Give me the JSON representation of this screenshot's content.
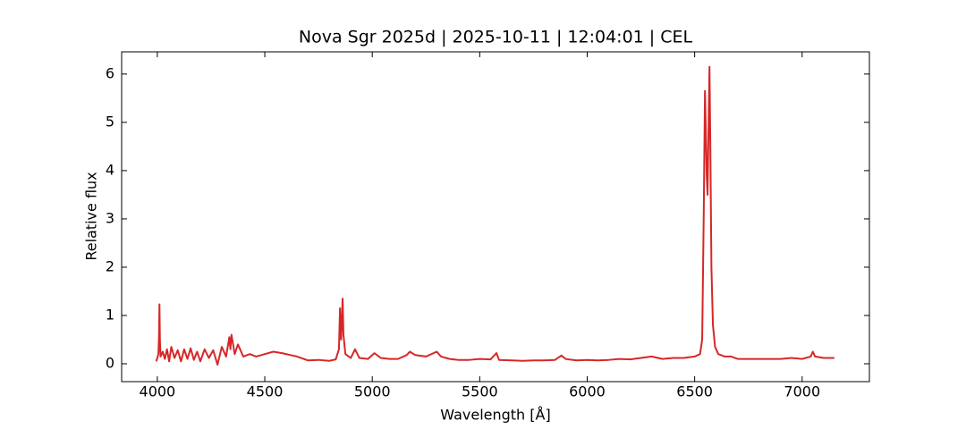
{
  "chart_data": {
    "type": "line",
    "title": "Nova Sgr 2025d | 2025-10-11 | 12:04:01 | CEL",
    "x_label": "Wavelength [Å]",
    "y_label": "Relative flux",
    "color": "#d62728",
    "xlim": [
      3834,
      7313
    ],
    "ylim": [
      -0.37,
      6.46
    ],
    "xticks": [
      4000,
      4500,
      5000,
      5500,
      6000,
      6500,
      7000
    ],
    "yticks": [
      0,
      1,
      2,
      3,
      4,
      5,
      6
    ],
    "x": [
      3995,
      4000,
      4005,
      4008,
      4010,
      4012,
      4015,
      4025,
      4035,
      4045,
      4055,
      4065,
      4080,
      4095,
      4110,
      4125,
      4140,
      4155,
      4170,
      4185,
      4200,
      4220,
      4240,
      4260,
      4280,
      4300,
      4320,
      4335,
      4340,
      4345,
      4360,
      4375,
      4400,
      4430,
      4460,
      4500,
      4540,
      4580,
      4620,
      4650,
      4700,
      4750,
      4800,
      4830,
      4845,
      4850,
      4855,
      4858,
      4862,
      4866,
      4875,
      4900,
      4920,
      4940,
      4980,
      5010,
      5040,
      5080,
      5120,
      5160,
      5175,
      5200,
      5250,
      5300,
      5320,
      5360,
      5400,
      5450,
      5500,
      5550,
      5578,
      5590,
      5650,
      5700,
      5750,
      5800,
      5850,
      5880,
      5900,
      5950,
      6000,
      6050,
      6100,
      6150,
      6200,
      6250,
      6300,
      6350,
      6400,
      6450,
      6500,
      6525,
      6535,
      6542,
      6548,
      6552,
      6556,
      6560,
      6565,
      6569,
      6573,
      6578,
      6585,
      6595,
      6610,
      6640,
      6670,
      6700,
      6750,
      6800,
      6850,
      6900,
      6950,
      7000,
      7040,
      7050,
      7060,
      7100,
      7150
    ],
    "values": [
      0.05,
      0.12,
      0.2,
      0.6,
      1.23,
      0.5,
      0.15,
      0.25,
      0.1,
      0.3,
      0.05,
      0.35,
      0.12,
      0.28,
      0.05,
      0.3,
      0.1,
      0.32,
      0.08,
      0.25,
      0.05,
      0.3,
      0.12,
      0.28,
      -0.02,
      0.35,
      0.15,
      0.55,
      0.3,
      0.6,
      0.2,
      0.4,
      0.15,
      0.2,
      0.15,
      0.2,
      0.25,
      0.22,
      0.18,
      0.15,
      0.07,
      0.08,
      0.06,
      0.09,
      0.3,
      1.15,
      0.5,
      0.8,
      1.35,
      0.6,
      0.2,
      0.12,
      0.3,
      0.12,
      0.1,
      0.22,
      0.12,
      0.1,
      0.1,
      0.18,
      0.25,
      0.18,
      0.15,
      0.25,
      0.15,
      0.1,
      0.08,
      0.08,
      0.1,
      0.09,
      0.22,
      0.08,
      0.07,
      0.06,
      0.07,
      0.07,
      0.08,
      0.17,
      0.1,
      0.07,
      0.08,
      0.07,
      0.08,
      0.1,
      0.09,
      0.12,
      0.15,
      0.1,
      0.12,
      0.12,
      0.15,
      0.2,
      0.5,
      3.0,
      5.65,
      4.8,
      3.9,
      3.5,
      5.0,
      6.15,
      4.5,
      2.0,
      0.8,
      0.35,
      0.2,
      0.15,
      0.15,
      0.1,
      0.1,
      0.1,
      0.1,
      0.1,
      0.12,
      0.1,
      0.15,
      0.25,
      0.15,
      0.12,
      0.12
    ]
  }
}
